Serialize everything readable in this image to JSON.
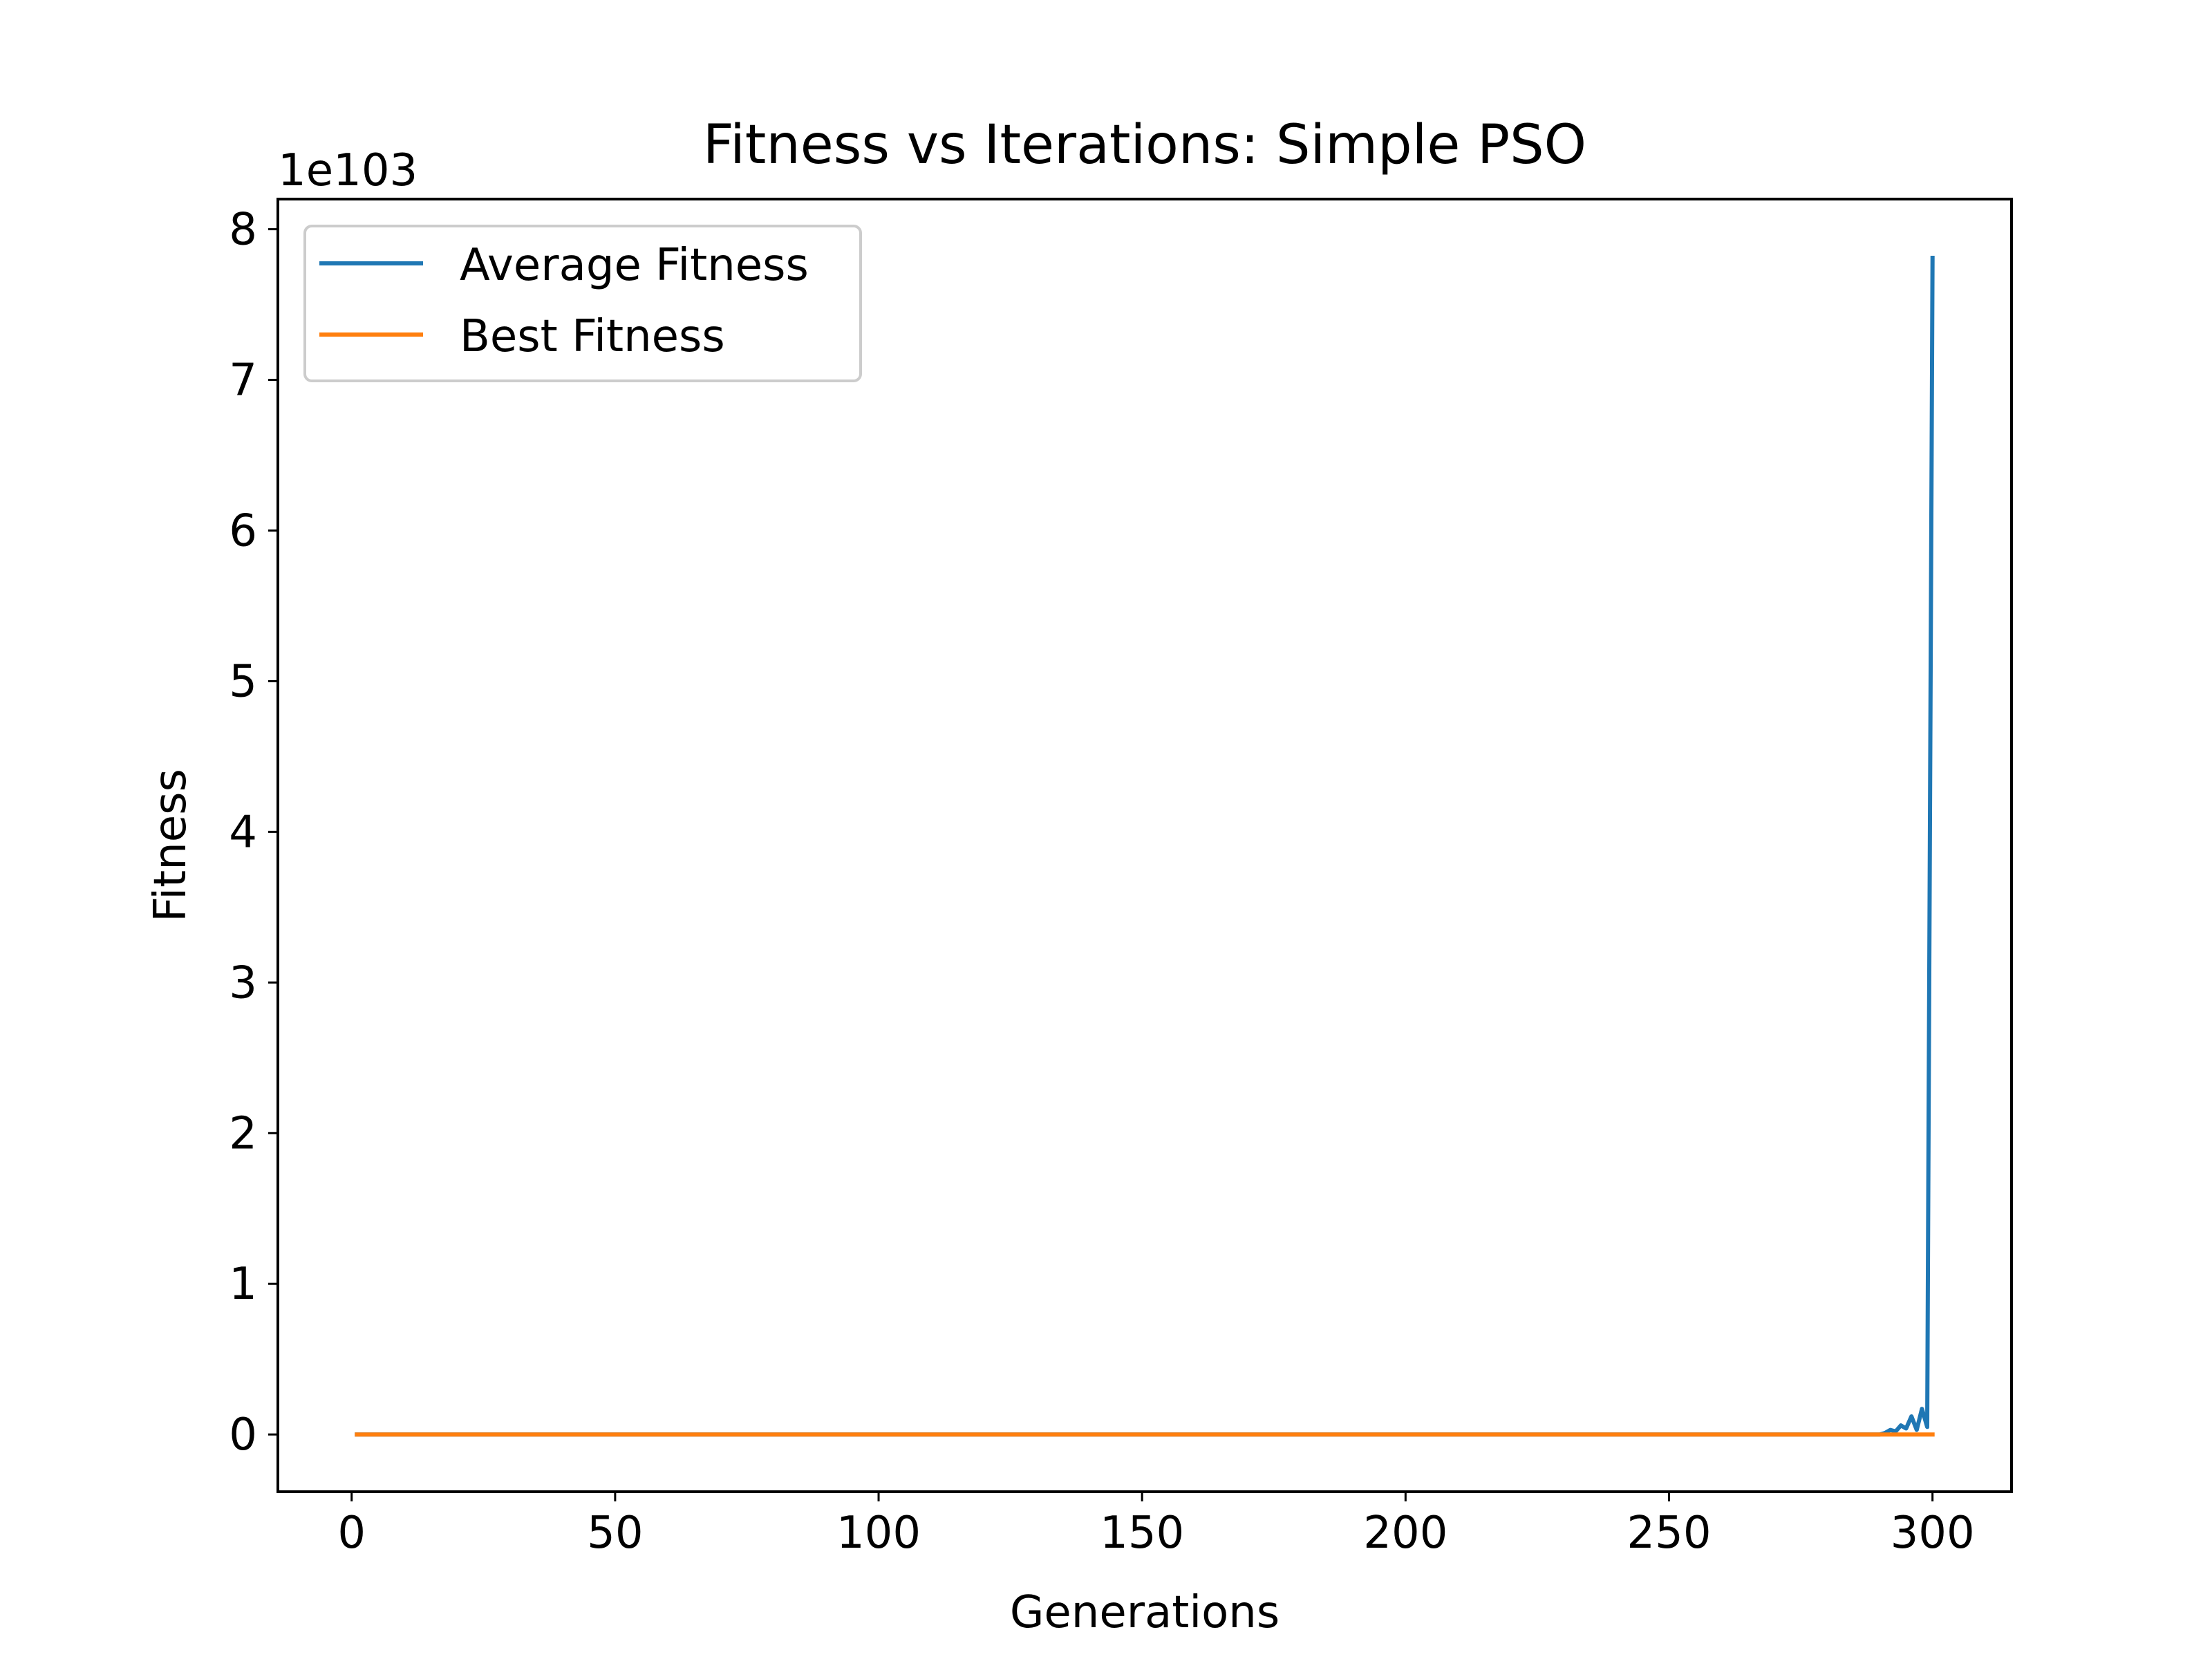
{
  "chart_data": {
    "type": "line",
    "title": "Fitness vs Iterations: Simple PSO",
    "xlabel": "Generations",
    "ylabel": "Fitness",
    "offset_text": "1e103",
    "xlim": [
      -14,
      315
    ],
    "ylim": [
      -0.38,
      8.2
    ],
    "xticks": [
      0,
      50,
      100,
      150,
      200,
      250,
      300
    ],
    "xtick_labels": [
      "0",
      "50",
      "100",
      "150",
      "200",
      "250",
      "300"
    ],
    "yticks": [
      0,
      1,
      2,
      3,
      4,
      5,
      6,
      7,
      8
    ],
    "ytick_labels": [
      "0",
      "1",
      "2",
      "3",
      "4",
      "5",
      "6",
      "7",
      "8"
    ],
    "grid": false,
    "legend_position": "upper left",
    "series": [
      {
        "name": "Average Fitness",
        "color": "#1f77b4",
        "x": [
          1,
          290,
          291,
          292,
          293,
          294,
          295,
          296,
          297,
          298,
          299,
          300
        ],
        "y": [
          0,
          0,
          0.01,
          0.03,
          0.02,
          0.06,
          0.04,
          0.12,
          0.03,
          0.17,
          0.05,
          7.81
        ]
      },
      {
        "name": "Best Fitness",
        "color": "#ff7f0e",
        "x": [
          1,
          300
        ],
        "y": [
          0,
          0
        ]
      }
    ]
  }
}
